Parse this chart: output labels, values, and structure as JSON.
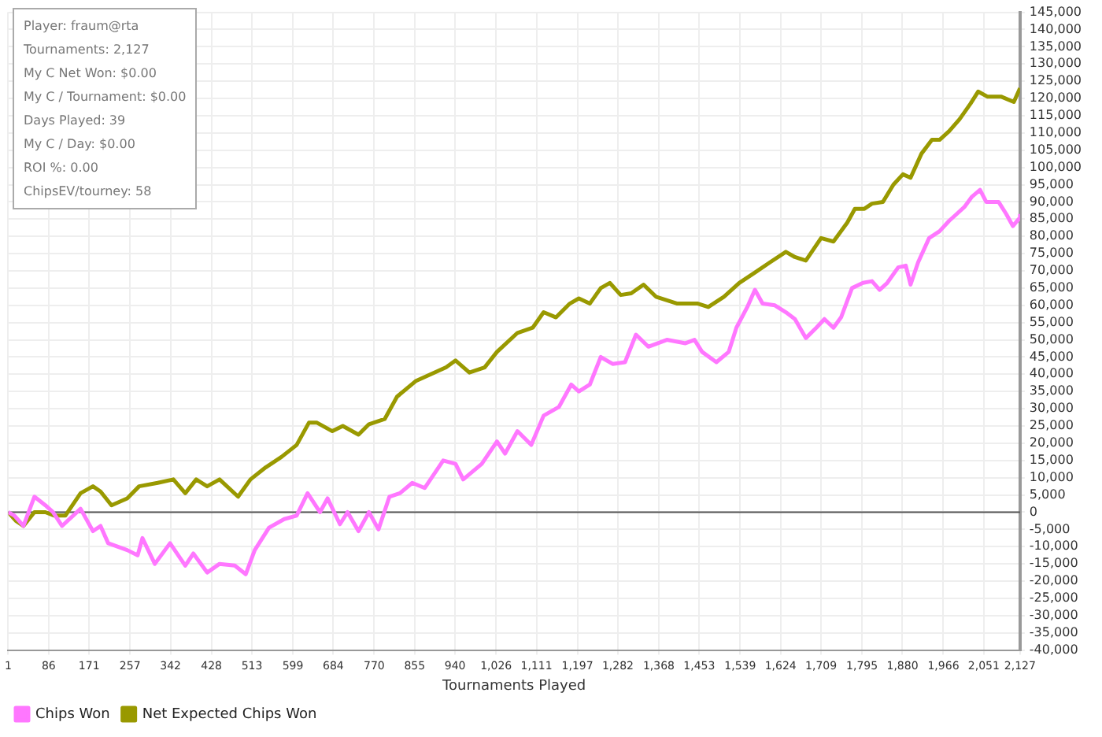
{
  "chart_data": {
    "type": "line",
    "xlabel": "Tournaments Played",
    "annotations": [
      "Player: fraum@rta",
      "Tournaments: 2,127",
      "My C Net Won: $0.00",
      "My C / Tournament: $0.00",
      "Days Played: 39",
      "My C / Day: $0.00",
      "ROI %: 0.00",
      "ChipsEV/tourney: 58"
    ],
    "xlim": [
      1,
      2127
    ],
    "xticks": [
      1,
      86,
      171,
      257,
      342,
      428,
      513,
      599,
      684,
      770,
      855,
      940,
      {
        "value": 1026,
        "label": "1,026"
      },
      {
        "value": 1111,
        "label": "1,111"
      },
      {
        "value": 1197,
        "label": "1,197"
      },
      {
        "value": 1282,
        "label": "1,282"
      },
      {
        "value": 1368,
        "label": "1,368"
      },
      {
        "value": 1453,
        "label": "1,453"
      },
      {
        "value": 1539,
        "label": "1,539"
      },
      {
        "value": 1624,
        "label": "1,624"
      },
      {
        "value": 1709,
        "label": "1,709"
      },
      {
        "value": 1795,
        "label": "1,795"
      },
      {
        "value": 1880,
        "label": "1,880"
      },
      {
        "value": 1966,
        "label": "1,966"
      },
      {
        "value": 2051,
        "label": "2,051"
      },
      {
        "value": 2127,
        "label": "2,127"
      }
    ],
    "ylim": [
      -40000,
      145000
    ],
    "yticks": [
      {
        "value": -40000,
        "label": "-40,000"
      },
      {
        "value": -35000,
        "label": "-35,000"
      },
      {
        "value": -30000,
        "label": "-30,000"
      },
      {
        "value": -25000,
        "label": "-25,000"
      },
      {
        "value": -20000,
        "label": "-20,000"
      },
      {
        "value": -15000,
        "label": "-15,000"
      },
      {
        "value": -10000,
        "label": "-10,000"
      },
      {
        "value": -5000,
        "label": "-5,000"
      },
      0,
      {
        "value": 5000,
        "label": "5,000"
      },
      {
        "value": 10000,
        "label": "10,000"
      },
      {
        "value": 15000,
        "label": "15,000"
      },
      {
        "value": 20000,
        "label": "20,000"
      },
      {
        "value": 25000,
        "label": "25,000"
      },
      {
        "value": 30000,
        "label": "30,000"
      },
      {
        "value": 35000,
        "label": "35,000"
      },
      {
        "value": 40000,
        "label": "40,000"
      },
      {
        "value": 45000,
        "label": "45,000"
      },
      {
        "value": 50000,
        "label": "50,000"
      },
      {
        "value": 55000,
        "label": "55,000"
      },
      {
        "value": 60000,
        "label": "60,000"
      },
      {
        "value": 65000,
        "label": "65,000"
      },
      {
        "value": 70000,
        "label": "70,000"
      },
      {
        "value": 75000,
        "label": "75,000"
      },
      {
        "value": 80000,
        "label": "80,000"
      },
      {
        "value": 85000,
        "label": "85,000"
      },
      {
        "value": 90000,
        "label": "90,000"
      },
      {
        "value": 95000,
        "label": "95,000"
      },
      {
        "value": 100000,
        "label": "100,000"
      },
      {
        "value": 105000,
        "label": "105,000"
      },
      {
        "value": 110000,
        "label": "110,000"
      },
      {
        "value": 115000,
        "label": "115,000"
      },
      {
        "value": 120000,
        "label": "120,000"
      },
      {
        "value": 125000,
        "label": "125,000"
      },
      {
        "value": 130000,
        "label": "130,000"
      },
      {
        "value": 135000,
        "label": "135,000"
      },
      {
        "value": 140000,
        "label": "140,000"
      },
      {
        "value": 145000,
        "label": "145,000"
      }
    ],
    "grid": true,
    "legend": "bottom left",
    "marker": "none",
    "line_style": "solid",
    "ref_lines": [
      {
        "axis": "y",
        "value": 0,
        "color": "#555555"
      }
    ],
    "series": [
      {
        "name": "Chips Won",
        "color": "#ff77ff",
        "x": [
          1,
          14,
          33,
          56,
          79,
          95,
          114,
          153,
          179,
          195,
          211,
          251,
          273,
          283,
          309,
          341,
          373,
          390,
          419,
          445,
          477,
          500,
          519,
          549,
          581,
          607,
          630,
          656,
          672,
          698,
          714,
          737,
          759,
          779,
          802,
          824,
          850,
          876,
          915,
          941,
          957,
          996,
          1028,
          1045,
          1071,
          1100,
          1126,
          1158,
          1184,
          1200,
          1223,
          1246,
          1271,
          1297,
          1320,
          1346,
          1385,
          1424,
          1443,
          1459,
          1489,
          1515,
          1531,
          1554,
          1570,
          1586,
          1612,
          1635,
          1654,
          1677,
          1699,
          1716,
          1735,
          1751,
          1774,
          1797,
          1816,
          1832,
          1848,
          1871,
          1887,
          1897,
          1913,
          1936,
          1958,
          1978,
          1994,
          2010,
          2026,
          2043,
          2056,
          2082,
          2098,
          2112,
          2124,
          2127
        ],
        "values": [
          0,
          -1000,
          -4000,
          4500,
          2000,
          0,
          -4000,
          1000,
          -5500,
          -4000,
          -9000,
          -11000,
          -12500,
          -7500,
          -15000,
          -9000,
          -15500,
          -12000,
          -17500,
          -15000,
          -15500,
          -18000,
          -11000,
          -4500,
          -2000,
          -1000,
          5500,
          0,
          4000,
          -3500,
          0,
          -5500,
          0,
          -5000,
          4500,
          5500,
          8500,
          7000,
          15000,
          14000,
          9500,
          14000,
          20500,
          17000,
          23500,
          19500,
          28000,
          30500,
          37000,
          35000,
          37000,
          45000,
          43000,
          43500,
          51500,
          48000,
          50000,
          49000,
          50000,
          46500,
          43500,
          46500,
          53500,
          59500,
          64500,
          60500,
          60000,
          58000,
          56000,
          50500,
          53500,
          56000,
          53500,
          56500,
          65000,
          66500,
          67000,
          64500,
          66500,
          71000,
          71500,
          66000,
          72500,
          79500,
          81500,
          84500,
          86500,
          88500,
          91500,
          93500,
          90000,
          90000,
          86500,
          83000,
          85000,
          86500
        ]
      },
      {
        "name": "Net Expected Chips Won",
        "color": "#999900",
        "x": [
          1,
          17,
          33,
          56,
          79,
          98,
          121,
          153,
          179,
          195,
          218,
          251,
          276,
          315,
          348,
          373,
          396,
          419,
          445,
          484,
          510,
          542,
          575,
          607,
          633,
          649,
          682,
          704,
          737,
          759,
          792,
          818,
          857,
          889,
          921,
          941,
          970,
          1002,
          1028,
          1071,
          1103,
          1126,
          1152,
          1181,
          1200,
          1223,
          1246,
          1265,
          1288,
          1310,
          1336,
          1362,
          1407,
          1450,
          1472,
          1505,
          1537,
          1570,
          1602,
          1635,
          1654,
          1677,
          1709,
          1735,
          1764,
          1780,
          1800,
          1816,
          1839,
          1861,
          1881,
          1897,
          1920,
          1942,
          1958,
          1978,
          2000,
          2023,
          2039,
          2059,
          2088,
          2114,
          2127
        ],
        "values": [
          0,
          -2500,
          -4000,
          0,
          0,
          -1000,
          -1000,
          5500,
          7500,
          6000,
          2000,
          4000,
          7500,
          8500,
          9500,
          5500,
          9500,
          7500,
          9500,
          4500,
          9500,
          13000,
          16000,
          19500,
          26000,
          26000,
          23500,
          25000,
          22500,
          25500,
          27000,
          33500,
          38000,
          40000,
          42000,
          44000,
          40500,
          42000,
          46500,
          52000,
          53500,
          58000,
          56500,
          60500,
          62000,
          60500,
          65000,
          66500,
          63000,
          63500,
          66000,
          62500,
          60500,
          60500,
          59500,
          62500,
          66500,
          69500,
          72500,
          75500,
          74000,
          73000,
          79500,
          78500,
          84000,
          88000,
          88000,
          89500,
          90000,
          95000,
          98000,
          97000,
          104000,
          108000,
          108000,
          110500,
          114000,
          118500,
          122000,
          120500,
          120500,
          119000,
          123000
        ]
      }
    ]
  }
}
